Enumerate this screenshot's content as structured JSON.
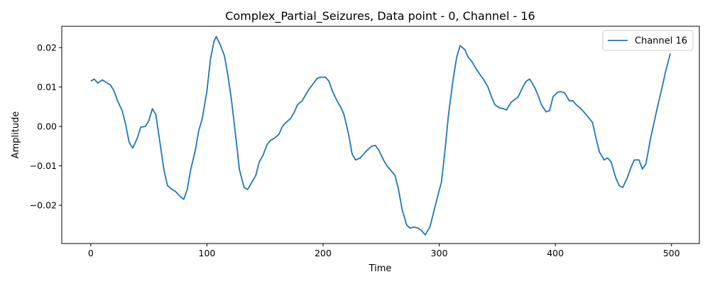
{
  "chart_data": {
    "type": "line",
    "title": "Complex_Partial_Seizures, Data point - 0, Channel - 16",
    "xlabel": "Time",
    "ylabel": "Amplitude",
    "xlim": [
      -25,
      524
    ],
    "ylim": [
      -0.0297,
      0.0254
    ],
    "xticks": [
      0,
      100,
      200,
      300,
      400,
      500
    ],
    "yticks": [
      -0.02,
      -0.01,
      0.0,
      0.01,
      0.02
    ],
    "xtick_labels": [
      "0",
      "100",
      "200",
      "300",
      "400",
      "500"
    ],
    "ytick_labels": [
      "−0.02",
      "−0.01",
      "0.00",
      "0.01",
      "0.02"
    ],
    "grid": false,
    "legend_position": "top-right",
    "colors": {
      "line": "#1f77b4",
      "axes": "#000000",
      "background": "#ffffff"
    },
    "series": [
      {
        "name": "Channel 16",
        "x": [
          0,
          3,
          6,
          10,
          13,
          17,
          20,
          23,
          27,
          30,
          33,
          36,
          40,
          43,
          47,
          50,
          53,
          56,
          60,
          63,
          66,
          70,
          73,
          76,
          80,
          83,
          86,
          90,
          93,
          96,
          100,
          103,
          106,
          108,
          111,
          115,
          118,
          121,
          125,
          128,
          132,
          135,
          138,
          142,
          145,
          148,
          152,
          155,
          158,
          162,
          165,
          168,
          172,
          175,
          178,
          182,
          185,
          188,
          192,
          195,
          198,
          202,
          205,
          208,
          212,
          215,
          218,
          222,
          225,
          228,
          232,
          235,
          238,
          242,
          245,
          248,
          252,
          255,
          258,
          262,
          265,
          268,
          272,
          275,
          278,
          282,
          285,
          288,
          292,
          295,
          298,
          302,
          305,
          308,
          312,
          315,
          318,
          322,
          325,
          328,
          332,
          335,
          338,
          342,
          345,
          348,
          352,
          355,
          358,
          362,
          365,
          368,
          372,
          375,
          378,
          382,
          385,
          388,
          392,
          395,
          398,
          402,
          405,
          408,
          412,
          415,
          418,
          422,
          425,
          428,
          432,
          435,
          438,
          442,
          445,
          448,
          452,
          455,
          458,
          462,
          465,
          468,
          472,
          475,
          478,
          482,
          485,
          488,
          492,
          495,
          499
        ],
        "values": [
          0.0115,
          0.012,
          0.011,
          0.0118,
          0.0112,
          0.0105,
          0.009,
          0.0065,
          0.004,
          0.0005,
          -0.004,
          -0.0055,
          -0.003,
          -0.0002,
          0.0,
          0.0015,
          0.0045,
          0.003,
          -0.005,
          -0.011,
          -0.015,
          -0.016,
          -0.0165,
          -0.0175,
          -0.0185,
          -0.016,
          -0.011,
          -0.006,
          -0.001,
          0.002,
          0.009,
          0.017,
          0.0215,
          0.0228,
          0.021,
          0.018,
          0.013,
          0.007,
          -0.003,
          -0.011,
          -0.0155,
          -0.016,
          -0.0145,
          -0.0125,
          -0.009,
          -0.0075,
          -0.0045,
          -0.0035,
          -0.003,
          -0.002,
          0.0,
          0.001,
          0.002,
          0.0035,
          0.0055,
          0.0065,
          0.008,
          0.0095,
          0.011,
          0.0122,
          0.0125,
          0.0125,
          0.0115,
          0.009,
          0.0065,
          0.005,
          0.003,
          -0.002,
          -0.007,
          -0.0085,
          -0.008,
          -0.007,
          -0.006,
          -0.005,
          -0.0048,
          -0.006,
          -0.0085,
          -0.01,
          -0.011,
          -0.0125,
          -0.016,
          -0.021,
          -0.025,
          -0.0258,
          -0.0255,
          -0.0258,
          -0.0265,
          -0.0275,
          -0.0255,
          -0.022,
          -0.0185,
          -0.014,
          -0.006,
          0.003,
          0.012,
          0.0175,
          0.0205,
          0.0195,
          0.0175,
          0.0165,
          0.0145,
          0.0132,
          0.012,
          0.01,
          0.0075,
          0.0055,
          0.0047,
          0.0045,
          0.0042,
          0.0062,
          0.0068,
          0.0075,
          0.01,
          0.0115,
          0.012,
          0.01,
          0.008,
          0.0055,
          0.0037,
          0.004,
          0.0075,
          0.0087,
          0.0088,
          0.0085,
          0.0065,
          0.0065,
          0.0055,
          0.0045,
          0.0035,
          0.0025,
          0.001,
          -0.003,
          -0.0065,
          -0.0085,
          -0.008,
          -0.009,
          -0.013,
          -0.015,
          -0.0155,
          -0.013,
          -0.0105,
          -0.0085,
          -0.0085,
          -0.0108,
          -0.0095,
          -0.003,
          0.001,
          0.005,
          0.01,
          0.014,
          0.0185
        ]
      }
    ]
  }
}
